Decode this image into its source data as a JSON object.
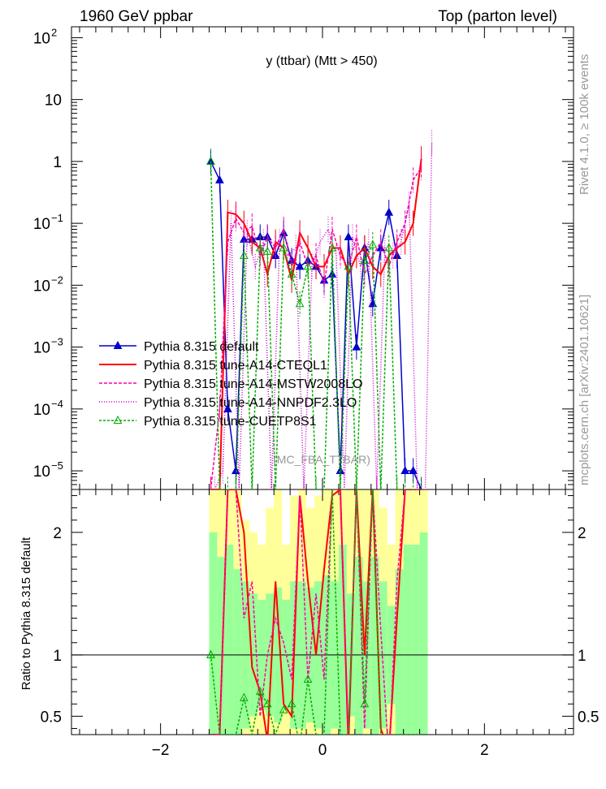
{
  "header": {
    "left": "1960 GeV ppbar",
    "right": "Top (parton level)"
  },
  "side_labels": {
    "right_top": "Rivet 4.1.0, ≥ 100k events",
    "right_bottom": "mcplots.cern.ch [arXiv:2401.10621]"
  },
  "chart_data": {
    "type": "line",
    "title": "y (ttbar) (Mtt > 450)",
    "watermark": "(MC_FBA_TTBAR)",
    "x_range": [
      -3.1,
      3.1
    ],
    "x_ticks": [
      -2,
      0,
      2
    ],
    "x_tick_labels": [
      "−2",
      "0",
      "2"
    ],
    "main": {
      "yscale": "log",
      "ylim": [
        5e-06,
        150
      ],
      "y_tick_labels": [
        {
          "v": 1e-05,
          "base": "10",
          "exp": "−5"
        },
        {
          "v": 0.0001,
          "base": "10",
          "exp": "−4"
        },
        {
          "v": 0.001,
          "base": "10",
          "exp": "−3"
        },
        {
          "v": 0.01,
          "base": "10",
          "exp": "−2"
        },
        {
          "v": 0.1,
          "base": "10",
          "exp": "−1"
        },
        {
          "v": 1,
          "base": "1",
          "exp": ""
        },
        {
          "v": 10,
          "base": "10",
          "exp": ""
        },
        {
          "v": 100,
          "base": "10",
          "exp": "2"
        }
      ]
    },
    "ratio": {
      "ylabel": "Ratio to Pythia 8.315 default",
      "ylim": [
        0.35,
        2.35
      ],
      "y_tick_labels": [
        {
          "v": 0.5,
          "t": "0.5"
        },
        {
          "v": 1,
          "t": "1"
        },
        {
          "v": 2,
          "t": "2"
        }
      ]
    },
    "bins": [
      -1.4,
      -1.3,
      -1.2,
      -1.1,
      -1.0,
      -0.9,
      -0.8,
      -0.7,
      -0.6,
      -0.5,
      -0.4,
      -0.3,
      -0.2,
      -0.1,
      0.0,
      0.1,
      0.2,
      0.3,
      0.4,
      0.5,
      0.6,
      0.7,
      0.8,
      0.9,
      1.0,
      1.1,
      1.2,
      1.3
    ],
    "series": [
      {
        "name": "Pythia 8.315 default",
        "color": "#0000cc",
        "dash": "",
        "marker": "triangle-filled",
        "x": [
          -1.38,
          -1.27,
          -1.17,
          -1.07,
          -0.97,
          -0.87,
          -0.77,
          -0.68,
          -0.58,
          -0.48,
          -0.38,
          -0.28,
          -0.18,
          -0.08,
          0.02,
          0.12,
          0.22,
          0.32,
          0.42,
          0.52,
          0.62,
          0.72,
          0.82,
          0.92,
          1.02,
          1.12,
          1.22
        ],
        "y": [
          1.0,
          0.5,
          0.0001,
          1e-05,
          0.055,
          0.055,
          0.06,
          0.06,
          0.03,
          0.07,
          0.025,
          0.02,
          0.025,
          0.02,
          0.012,
          0.015,
          1e-05,
          0.06,
          0.001,
          0.04,
          0.005,
          0.04,
          0.15,
          0.03,
          1e-05,
          1e-05,
          5e-06
        ]
      },
      {
        "name": "Pythia 8.315 tune-A14-CTEQL1",
        "color": "#ff0000",
        "dash": "",
        "marker": "none",
        "x": [
          -1.38,
          -1.27,
          -1.17,
          -1.07,
          -0.97,
          -0.87,
          -0.77,
          -0.68,
          -0.58,
          -0.48,
          -0.38,
          -0.28,
          -0.18,
          -0.08,
          0.02,
          0.12,
          0.22,
          0.32,
          0.42,
          0.52,
          0.62,
          0.72,
          0.82,
          0.92,
          1.02,
          1.12,
          1.22
        ],
        "y": [
          5e-06,
          5e-06,
          0.15,
          0.14,
          0.1,
          0.05,
          0.04,
          0.015,
          0.05,
          0.04,
          0.012,
          0.07,
          0.04,
          0.02,
          0.02,
          0.04,
          0.04,
          0.015,
          0.03,
          0.04,
          0.02,
          0.015,
          0.03,
          0.04,
          0.05,
          0.1,
          1.1
        ]
      },
      {
        "name": "Pythia 8.315 tune-A14-MSTW2008LO",
        "color": "#ff00aa",
        "dash": "4,2",
        "marker": "none",
        "x": [
          -1.38,
          -1.27,
          -1.17,
          -1.07,
          -0.97,
          -0.87,
          -0.77,
          -0.68,
          -0.58,
          -0.48,
          -0.38,
          -0.28,
          -0.18,
          -0.08,
          0.02,
          0.12,
          0.22,
          0.32,
          0.42,
          0.52,
          0.62,
          0.72,
          0.82,
          0.92,
          1.02,
          1.12,
          1.22
        ],
        "y": [
          5e-06,
          0.0001,
          0.05,
          0.12,
          0.07,
          0.09,
          0.03,
          0.06,
          0.04,
          0.08,
          0.02,
          0.05,
          0.02,
          0.03,
          0.01,
          0.08,
          0.03,
          0.02,
          0.06,
          0.015,
          0.03,
          0.05,
          0.02,
          0.05,
          0.1,
          0.5,
          0.8
        ]
      },
      {
        "name": "Pythia 8.315 tune-A14-NNPDF2.3LO",
        "color": "#cc00cc",
        "dash": "1,2",
        "marker": "none",
        "x": [
          -1.33,
          -1.23,
          -1.13,
          -1.03,
          -0.93,
          -0.83,
          -0.73,
          -0.63,
          -0.53,
          -0.43,
          -0.33,
          -0.23,
          -0.13,
          -0.03,
          0.07,
          0.17,
          0.27,
          0.37,
          0.47,
          0.57,
          0.67,
          0.77,
          0.87,
          0.97,
          1.07,
          1.17,
          1.27,
          1.35
        ],
        "y": [
          5e-06,
          1e-05,
          0.1,
          5e-06,
          0.07,
          0.02,
          0.05,
          5e-06,
          0.05,
          0.03,
          0.04,
          5e-06,
          0.02,
          0.05,
          0.08,
          0.03,
          5e-06,
          0.06,
          0.02,
          0.05,
          5e-06,
          0.04,
          0.03,
          0.05,
          0.2,
          5e-06,
          5e-06,
          2.0
        ]
      },
      {
        "name": "Pythia 8.315 tune-CUETP8S1",
        "color": "#00aa00",
        "dash": "3,2",
        "marker": "triangle-open",
        "x": [
          -1.38,
          -1.27,
          -1.17,
          -1.07,
          -0.97,
          -0.87,
          -0.77,
          -0.68,
          -0.58,
          -0.48,
          -0.38,
          -0.28,
          -0.18,
          -0.08,
          0.02,
          0.12,
          0.22,
          0.32,
          0.42,
          0.52,
          0.62,
          0.72,
          0.82,
          0.92,
          1.02,
          1.12,
          1.22
        ],
        "y": [
          1.0,
          5e-06,
          5e-06,
          5e-06,
          0.03,
          5e-06,
          0.04,
          0.035,
          5e-06,
          0.04,
          0.015,
          0.005,
          0.02,
          5e-06,
          5e-06,
          0.04,
          5e-06,
          0.02,
          5e-06,
          0.025,
          0.045,
          5e-06,
          0.04,
          5e-06,
          5e-06,
          5e-06,
          5e-06
        ]
      }
    ],
    "ratio_series": [
      {
        "name": "Pythia 8.315 tune-A14-CTEQL1",
        "y": [
          0.35,
          0.35,
          2.35,
          2.35,
          2.0,
          0.9,
          0.7,
          0.3,
          1.6,
          0.6,
          0.5,
          2.3,
          1.6,
          1.0,
          1.7,
          2.3,
          2.35,
          0.25,
          2.35,
          1.0,
          2.35,
          0.4,
          0.2,
          1.3,
          2.35,
          2.35,
          2.35
        ]
      },
      {
        "name": "Pythia 8.315 tune-A14-MSTW2008LO",
        "y": [
          0.35,
          0.35,
          2.35,
          2.35,
          1.3,
          1.6,
          0.5,
          1.0,
          1.3,
          1.1,
          0.8,
          2.3,
          0.8,
          1.5,
          0.8,
          2.35,
          2.35,
          0.35,
          2.35,
          0.4,
          2.35,
          1.2,
          0.15,
          1.6,
          2.35,
          2.35,
          2.35
        ]
      },
      {
        "name": "Pythia 8.315 tune-CUETP8S1",
        "y": [
          1.0,
          0.35,
          0.35,
          0.35,
          0.65,
          0.35,
          0.7,
          0.6,
          0.35,
          0.55,
          0.6,
          0.25,
          0.8,
          0.35,
          0.35,
          2.35,
          0.35,
          0.35,
          2.35,
          0.6,
          2.35,
          0.35,
          0.3,
          0.35,
          0.35,
          0.35,
          0.35
        ]
      }
    ],
    "ratio_band": {
      "green_half_width": [
        1.0,
        0.8,
        0.9,
        0.7,
        0.6,
        0.5,
        0.45,
        0.5,
        0.55,
        0.45,
        0.6,
        0.6,
        0.55,
        0.6,
        0.65,
        0.6,
        0.9,
        0.5,
        0.8,
        0.6,
        0.8,
        0.6,
        0.4,
        0.7,
        0.9,
        0.9,
        1.0
      ],
      "yellow_half_width": [
        1.4,
        1.4,
        1.4,
        1.4,
        1.1,
        1.0,
        0.9,
        1.2,
        1.4,
        0.9,
        1.3,
        1.4,
        1.2,
        1.3,
        1.4,
        1.4,
        1.4,
        1.4,
        1.4,
        1.4,
        1.4,
        1.2,
        0.9,
        1.4,
        1.4,
        1.4,
        1.4
      ],
      "colors": {
        "green": "#99ff99",
        "yellow": "#ffff99"
      }
    }
  }
}
